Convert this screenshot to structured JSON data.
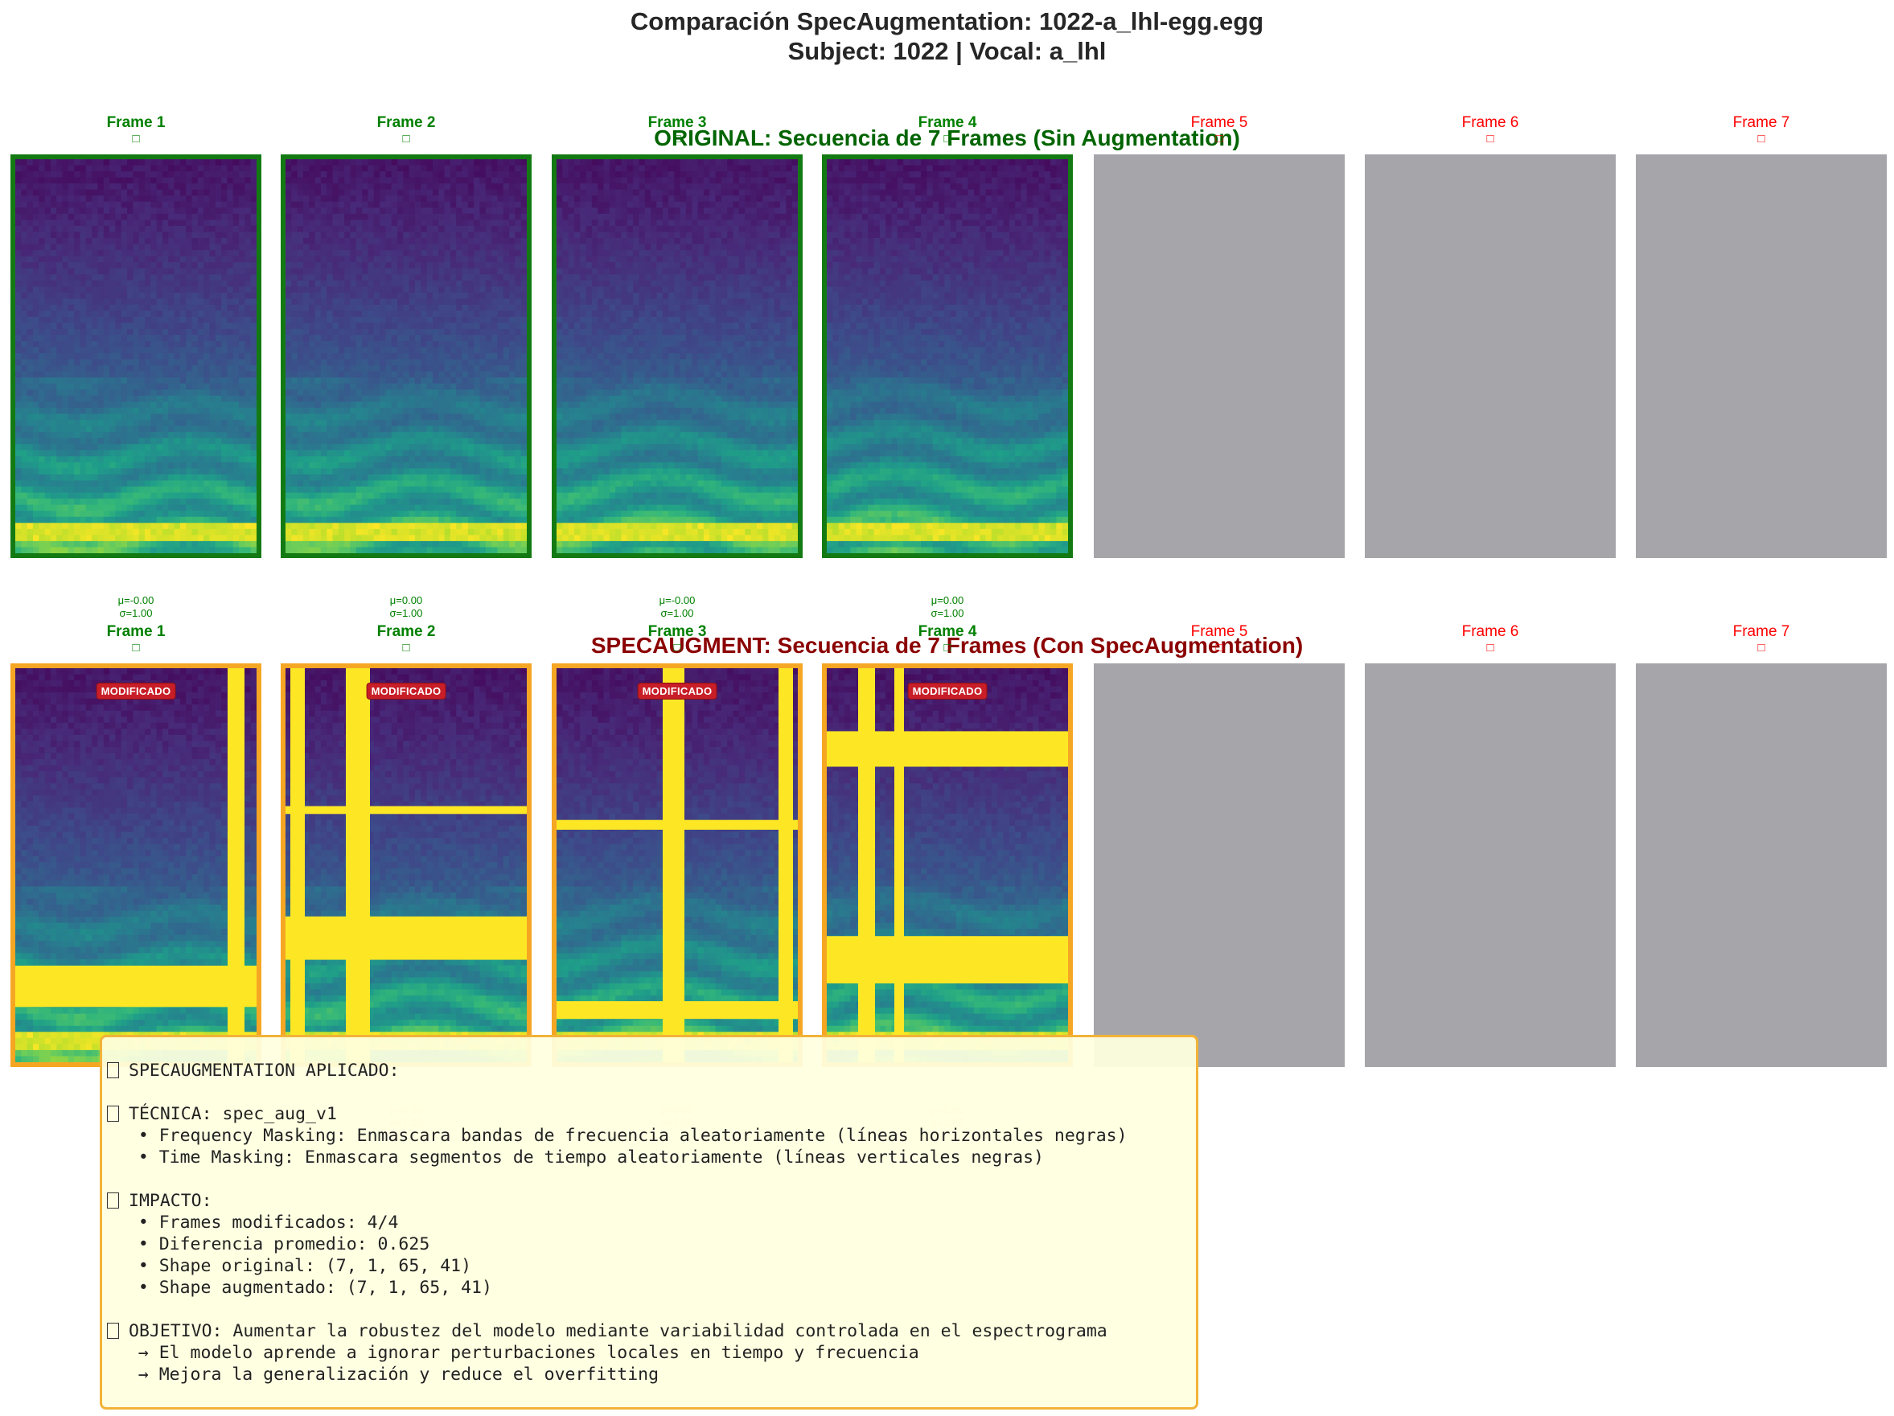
{
  "title_line1": "Comparación SpecAugmentation: 1022-a_lhl-egg.egg",
  "title_line2": "Subject: 1022 | Vocal: a_lhl",
  "chart_data": {
    "type": "heatmap",
    "title": "Comparación SpecAugmentation: 1022-a_lhl-egg.egg",
    "subtitle": "Subject: 1022 | Vocal: a_lhl",
    "colormap": "viridis",
    "rows": [
      {
        "title": "ORIGINAL: Secuencia de 7 Frames (Sin Augmentation)",
        "title_color": "#006400",
        "frames": [
          {
            "label": "Frame 1",
            "valid": true,
            "stats": ""
          },
          {
            "label": "Frame 2",
            "valid": true,
            "stats": ""
          },
          {
            "label": "Frame 3",
            "valid": true,
            "stats": ""
          },
          {
            "label": "Frame 4",
            "valid": true,
            "stats": ""
          },
          {
            "label": "Frame 5",
            "valid": false,
            "stats": ""
          },
          {
            "label": "Frame 6",
            "valid": false,
            "stats": ""
          },
          {
            "label": "Frame 7",
            "valid": false,
            "stats": ""
          }
        ]
      },
      {
        "title": "SPECAUGMENT: Secuencia de 7 Frames (Con SpecAugmentation)",
        "title_color": "#8b0000",
        "frames": [
          {
            "label": "Frame 1",
            "valid": true,
            "stats_above": "μ=-0.00\nσ=1.00",
            "badge": "MODIFICADO",
            "time_masks": [
              [
                0.88,
                0.95
              ]
            ],
            "freq_masks": [
              [
                0.755,
                0.86
              ]
            ]
          },
          {
            "label": "Frame 2",
            "valid": true,
            "stats_above": "μ=0.00\nσ=1.00",
            "badge": "MODIFICADO",
            "time_masks": [
              [
                0.02,
                0.08
              ],
              [
                0.25,
                0.35
              ]
            ],
            "freq_masks": [
              [
                0.35,
                0.37
              ],
              [
                0.63,
                0.74
              ]
            ]
          },
          {
            "label": "Frame 3",
            "valid": true,
            "stats_above": "μ=-0.00\nσ=1.00",
            "badge": "MODIFICADO",
            "time_masks": [
              [
                0.44,
                0.53
              ],
              [
                0.92,
                0.98
              ]
            ],
            "freq_masks": [
              [
                0.385,
                0.41
              ],
              [
                0.845,
                0.89
              ]
            ]
          },
          {
            "label": "Frame 4",
            "valid": true,
            "stats_above": "μ=0.00\nσ=1.00",
            "badge": "MODIFICADO",
            "time_masks": [
              [
                0.13,
                0.2
              ],
              [
                0.28,
                0.32
              ]
            ],
            "freq_masks": [
              [
                0.16,
                0.25
              ],
              [
                0.68,
                0.8
              ]
            ]
          },
          {
            "label": "Frame 5",
            "valid": false
          },
          {
            "label": "Frame 6",
            "valid": false
          },
          {
            "label": "Frame 7",
            "valid": false
          }
        ],
        "stats_below": [
          "",
          "μ=0.00\nσ=1.00",
          "μ=0.00\nσ=1.00",
          "μ=0.00\nσ=1.00",
          "",
          "",
          ""
        ]
      }
    ]
  },
  "info_box": {
    "lines": [
      "SPECAUGMENTATION APLICADO:",
      "",
      "TÉCNICA: spec_aug_v1",
      "   • Frequency Masking: Enmascara bandas de frecuencia aleatoriamente (líneas horizontales negras)",
      "   • Time Masking: Enmascara segmentos de tiempo aleatoriamente (líneas verticales negras)",
      "",
      "IMPACTO:",
      "   • Frames modificados: 4/4",
      "   • Diferencia promedio: 0.625",
      "   • Shape original: (7, 1, 65, 41)",
      "   • Shape augmentado: (7, 1, 65, 41)",
      "",
      "OBJETIVO: Aumentar la robustez del modelo mediante variabilidad controlada en el espectrograma",
      "   → El modelo aprende a ignorar perturbaciones locales en tiempo y frecuencia",
      "   → Mejora la generalización y reduce el overfitting"
    ],
    "icon_lines": [
      0,
      2,
      6,
      12
    ]
  },
  "colors": {
    "valid_title": "#008000",
    "invalid_title": "#ff0000",
    "orig_border": "#137a13",
    "aug_border": "#f5a623",
    "empty_panel": "#a6a5aa",
    "mask": "#fde725",
    "badge": "#c81e28"
  }
}
